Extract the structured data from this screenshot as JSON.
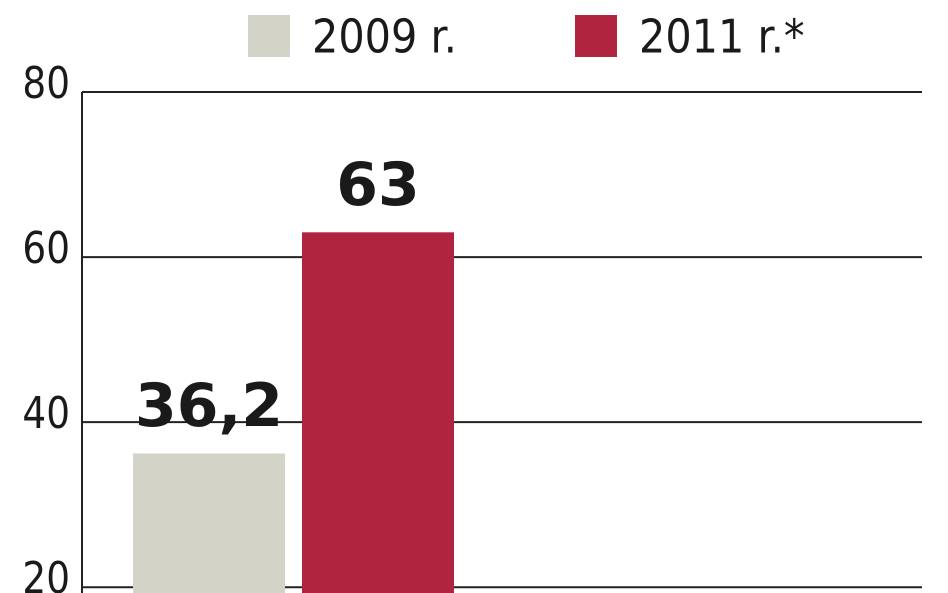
{
  "chart_data": {
    "type": "bar",
    "categories": [
      null
    ],
    "series": [
      {
        "name": "2009 r.",
        "color": "#d3d3c7",
        "values": [
          36.2
        ],
        "value_labels": [
          "36,2"
        ]
      },
      {
        "name": "2011 r.*",
        "color": "#b0243f",
        "values": [
          63
        ],
        "value_labels": [
          "63"
        ]
      }
    ],
    "ylim": [
      19.3,
      80
    ],
    "yticks": [
      20,
      40,
      60,
      80
    ],
    "grid": true
  }
}
